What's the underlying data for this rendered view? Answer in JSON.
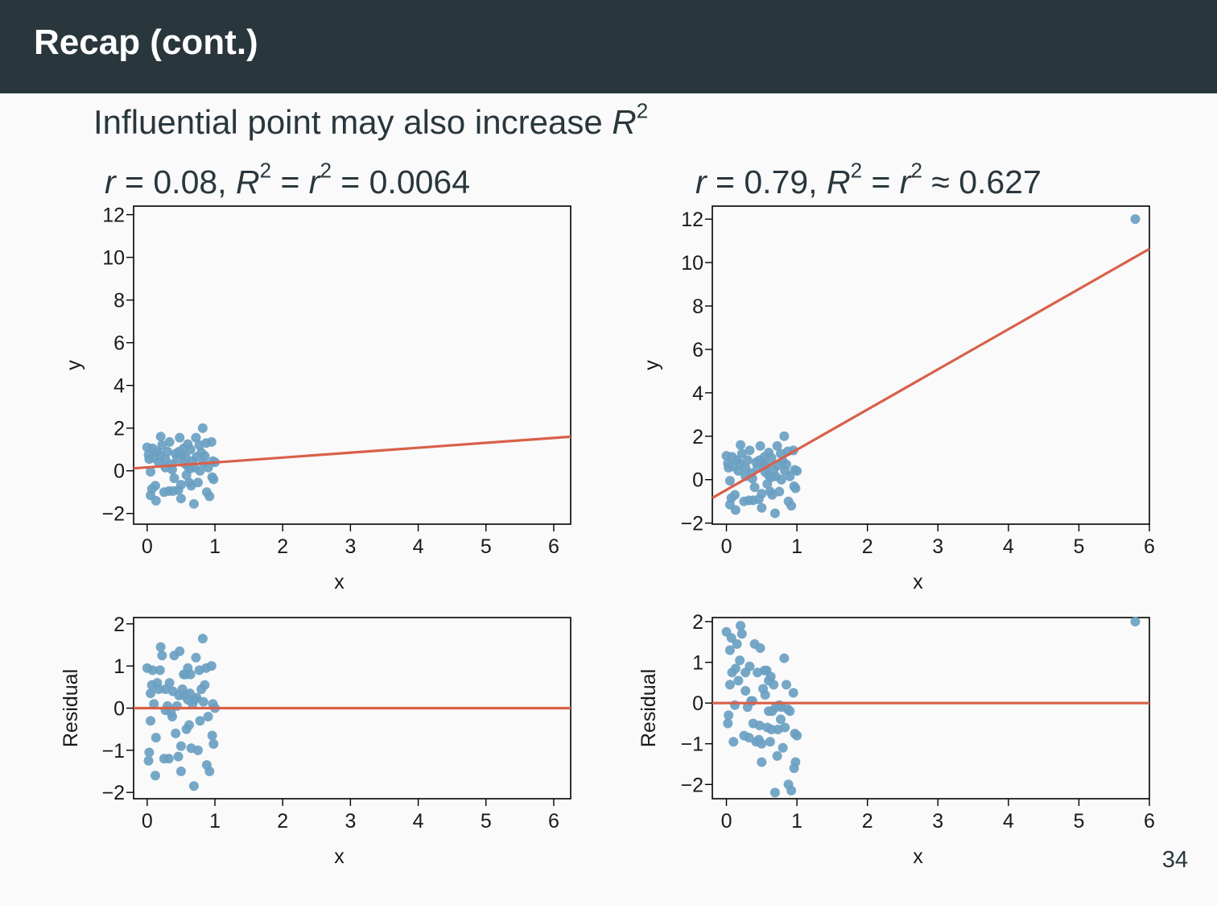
{
  "slide": {
    "title": "Recap (cont.)",
    "subtitle_text": "Influential point may also increase ",
    "subtitle_var": "R",
    "subtitle_sup": "2",
    "page_number": "34"
  },
  "headings": {
    "left": {
      "r": "r",
      "eq1": " = 0.08, ",
      "R": "R",
      "sup1": "2",
      "eq2": " = ",
      "r2": "r",
      "sup2": "2",
      "eq3": " = 0.0064"
    },
    "right": {
      "r": "r",
      "eq1": " = 0.79, ",
      "R": "R",
      "sup1": "2",
      "eq2": " = ",
      "r2": "r",
      "sup2": "2",
      "eq3": " ≈ 0.627"
    }
  },
  "colors": {
    "point": "#6a9fc2",
    "line": "#d9604a",
    "axis": "#000000",
    "text": "#29373d"
  },
  "chart_data": [
    {
      "id": "scatter-left",
      "type": "scatter",
      "xlabel": "x",
      "ylabel": "y",
      "xlim": [
        -0.2,
        6.25
      ],
      "ylim": [
        -2.5,
        12.4
      ],
      "xticks": [
        0,
        1,
        2,
        3,
        4,
        5,
        6
      ],
      "yticks": [
        -2,
        0,
        2,
        4,
        6,
        8,
        10,
        12
      ],
      "fit_line": {
        "intercept": 0.16,
        "slope": 0.23
      },
      "points": [
        [
          0.0,
          1.1
        ],
        [
          0.02,
          0.75
        ],
        [
          0.03,
          0.55
        ],
        [
          0.05,
          -0.05
        ],
        [
          0.05,
          -1.15
        ],
        [
          0.07,
          -0.85
        ],
        [
          0.08,
          1.05
        ],
        [
          0.1,
          0.6
        ],
        [
          0.12,
          -0.7
        ],
        [
          0.13,
          -1.4
        ],
        [
          0.15,
          0.9
        ],
        [
          0.17,
          0.4
        ],
        [
          0.19,
          0.75
        ],
        [
          0.2,
          1.6
        ],
        [
          0.22,
          1.2
        ],
        [
          0.25,
          -1.0
        ],
        [
          0.27,
          0.55
        ],
        [
          0.3,
          0.9
        ],
        [
          0.32,
          -0.95
        ],
        [
          0.33,
          1.35
        ],
        [
          0.35,
          0.3
        ],
        [
          0.37,
          0.05
        ],
        [
          0.38,
          -0.95
        ],
        [
          0.4,
          -0.35
        ],
        [
          0.42,
          0.8
        ],
        [
          0.44,
          0.55
        ],
        [
          0.46,
          -0.9
        ],
        [
          0.48,
          1.55
        ],
        [
          0.5,
          -0.65
        ],
        [
          0.5,
          -1.3
        ],
        [
          0.52,
          0.75
        ],
        [
          0.54,
          1.05
        ],
        [
          0.55,
          0.35
        ],
        [
          0.57,
          0.65
        ],
        [
          0.58,
          -0.2
        ],
        [
          0.6,
          1.25
        ],
        [
          0.6,
          0.2
        ],
        [
          0.62,
          -0.55
        ],
        [
          0.64,
          1.0
        ],
        [
          0.65,
          -0.7
        ],
        [
          0.67,
          0.45
        ],
        [
          0.69,
          -1.55
        ],
        [
          0.7,
          0.15
        ],
        [
          0.72,
          1.55
        ],
        [
          0.73,
          0.65
        ],
        [
          0.75,
          -0.55
        ],
        [
          0.77,
          1.2
        ],
        [
          0.78,
          0.0
        ],
        [
          0.8,
          0.85
        ],
        [
          0.82,
          2.0
        ],
        [
          0.83,
          0.4
        ],
        [
          0.85,
          0.7
        ],
        [
          0.87,
          1.3
        ],
        [
          0.88,
          -1.0
        ],
        [
          0.9,
          0.15
        ],
        [
          0.92,
          -1.2
        ],
        [
          0.95,
          1.35
        ],
        [
          0.96,
          -0.3
        ],
        [
          0.97,
          0.45
        ],
        [
          0.98,
          -0.4
        ],
        [
          1.0,
          0.4
        ],
        [
          0.27,
          0.15
        ],
        [
          0.47,
          0.9
        ],
        [
          0.63,
          0.1
        ]
      ]
    },
    {
      "id": "scatter-right",
      "type": "scatter",
      "xlabel": "x",
      "ylabel": "y",
      "xlim": [
        -0.2,
        6.0
      ],
      "ylim": [
        -2.05,
        12.6
      ],
      "xticks": [
        0,
        1,
        2,
        3,
        4,
        5,
        6
      ],
      "yticks": [
        -2,
        0,
        2,
        4,
        6,
        8,
        10,
        12
      ],
      "fit_line": {
        "intercept": -0.47,
        "slope": 1.85
      },
      "points": [
        [
          0.0,
          1.1
        ],
        [
          0.02,
          0.75
        ],
        [
          0.03,
          0.55
        ],
        [
          0.05,
          -0.05
        ],
        [
          0.05,
          -1.15
        ],
        [
          0.07,
          -0.85
        ],
        [
          0.08,
          1.05
        ],
        [
          0.1,
          0.6
        ],
        [
          0.12,
          -0.7
        ],
        [
          0.13,
          -1.4
        ],
        [
          0.15,
          0.9
        ],
        [
          0.17,
          0.4
        ],
        [
          0.19,
          0.75
        ],
        [
          0.2,
          1.6
        ],
        [
          0.22,
          1.2
        ],
        [
          0.25,
          -1.0
        ],
        [
          0.27,
          0.55
        ],
        [
          0.3,
          0.9
        ],
        [
          0.32,
          -0.95
        ],
        [
          0.33,
          1.35
        ],
        [
          0.35,
          0.3
        ],
        [
          0.37,
          0.05
        ],
        [
          0.38,
          -0.95
        ],
        [
          0.4,
          -0.35
        ],
        [
          0.42,
          0.8
        ],
        [
          0.44,
          0.55
        ],
        [
          0.46,
          -0.9
        ],
        [
          0.48,
          1.55
        ],
        [
          0.5,
          -0.65
        ],
        [
          0.5,
          -1.3
        ],
        [
          0.52,
          0.75
        ],
        [
          0.54,
          1.05
        ],
        [
          0.55,
          0.35
        ],
        [
          0.57,
          0.65
        ],
        [
          0.58,
          -0.2
        ],
        [
          0.6,
          1.25
        ],
        [
          0.6,
          0.2
        ],
        [
          0.62,
          -0.55
        ],
        [
          0.64,
          1.0
        ],
        [
          0.65,
          -0.7
        ],
        [
          0.67,
          0.45
        ],
        [
          0.69,
          -1.55
        ],
        [
          0.7,
          0.15
        ],
        [
          0.72,
          1.55
        ],
        [
          0.73,
          0.65
        ],
        [
          0.75,
          -0.55
        ],
        [
          0.77,
          1.2
        ],
        [
          0.78,
          0.0
        ],
        [
          0.8,
          0.85
        ],
        [
          0.82,
          2.0
        ],
        [
          0.83,
          0.4
        ],
        [
          0.85,
          0.7
        ],
        [
          0.87,
          1.3
        ],
        [
          0.88,
          -1.0
        ],
        [
          0.9,
          0.15
        ],
        [
          0.92,
          -1.2
        ],
        [
          0.95,
          1.35
        ],
        [
          0.96,
          -0.3
        ],
        [
          0.97,
          0.45
        ],
        [
          0.98,
          -0.4
        ],
        [
          1.0,
          0.4
        ],
        [
          0.27,
          0.15
        ],
        [
          0.47,
          0.9
        ],
        [
          0.63,
          0.1
        ],
        [
          5.8,
          12.0
        ]
      ]
    },
    {
      "id": "residual-left",
      "type": "scatter",
      "xlabel": "x",
      "ylabel": "Residual",
      "xlim": [
        -0.2,
        6.25
      ],
      "ylim": [
        -2.15,
        2.15
      ],
      "xticks": [
        0,
        1,
        2,
        3,
        4,
        5,
        6
      ],
      "yticks": [
        -2,
        -1,
        0,
        1,
        2
      ],
      "fit_line": {
        "intercept": 0,
        "slope": 0
      },
      "points": [
        [
          0.0,
          0.95
        ],
        [
          0.02,
          -1.25
        ],
        [
          0.03,
          -1.05
        ],
        [
          0.05,
          0.35
        ],
        [
          0.05,
          -0.3
        ],
        [
          0.07,
          0.55
        ],
        [
          0.08,
          0.9
        ],
        [
          0.1,
          0.1
        ],
        [
          0.12,
          -1.6
        ],
        [
          0.13,
          -0.7
        ],
        [
          0.15,
          0.6
        ],
        [
          0.17,
          0.45
        ],
        [
          0.19,
          0.9
        ],
        [
          0.2,
          1.45
        ],
        [
          0.22,
          1.25
        ],
        [
          0.25,
          -1.2
        ],
        [
          0.27,
          0.45
        ],
        [
          0.3,
          0.05
        ],
        [
          0.32,
          -1.2
        ],
        [
          0.33,
          0.6
        ],
        [
          0.35,
          -0.1
        ],
        [
          0.37,
          -0.2
        ],
        [
          0.38,
          0.4
        ],
        [
          0.4,
          1.25
        ],
        [
          0.42,
          -0.6
        ],
        [
          0.44,
          0.05
        ],
        [
          0.46,
          -1.15
        ],
        [
          0.48,
          1.35
        ],
        [
          0.5,
          -0.9
        ],
        [
          0.5,
          -1.5
        ],
        [
          0.52,
          0.45
        ],
        [
          0.54,
          0.8
        ],
        [
          0.55,
          0.3
        ],
        [
          0.57,
          0.8
        ],
        [
          0.58,
          -0.5
        ],
        [
          0.6,
          0.95
        ],
        [
          0.6,
          0.2
        ],
        [
          0.62,
          -0.4
        ],
        [
          0.64,
          0.8
        ],
        [
          0.65,
          -0.95
        ],
        [
          0.67,
          0.1
        ],
        [
          0.69,
          -1.85
        ],
        [
          0.7,
          0.2
        ],
        [
          0.72,
          1.2
        ],
        [
          0.73,
          0.25
        ],
        [
          0.75,
          -1.0
        ],
        [
          0.77,
          0.9
        ],
        [
          0.78,
          -0.3
        ],
        [
          0.8,
          0.45
        ],
        [
          0.82,
          1.65
        ],
        [
          0.83,
          0.15
        ],
        [
          0.85,
          0.55
        ],
        [
          0.87,
          0.95
        ],
        [
          0.88,
          -1.35
        ],
        [
          0.9,
          -0.2
        ],
        [
          0.92,
          -1.5
        ],
        [
          0.95,
          1.0
        ],
        [
          0.96,
          -0.65
        ],
        [
          0.97,
          0.1
        ],
        [
          0.98,
          -0.85
        ],
        [
          1.0,
          0.0
        ],
        [
          0.27,
          -0.05
        ],
        [
          0.47,
          0.3
        ],
        [
          0.63,
          0.35
        ]
      ]
    },
    {
      "id": "residual-right",
      "type": "scatter",
      "xlabel": "x",
      "ylabel": "Residual",
      "xlim": [
        -0.2,
        6.0
      ],
      "ylim": [
        -2.35,
        2.1
      ],
      "xticks": [
        0,
        1,
        2,
        3,
        4,
        5,
        6
      ],
      "yticks": [
        -2,
        -1,
        0,
        1,
        2
      ],
      "fit_line": {
        "intercept": 0,
        "slope": 0
      },
      "points": [
        [
          0.0,
          1.75
        ],
        [
          0.02,
          -0.5
        ],
        [
          0.03,
          -0.3
        ],
        [
          0.05,
          1.3
        ],
        [
          0.05,
          0.45
        ],
        [
          0.07,
          1.6
        ],
        [
          0.08,
          0.75
        ],
        [
          0.1,
          -0.95
        ],
        [
          0.12,
          -0.05
        ],
        [
          0.13,
          0.85
        ],
        [
          0.15,
          1.45
        ],
        [
          0.17,
          0.55
        ],
        [
          0.19,
          1.05
        ],
        [
          0.2,
          1.9
        ],
        [
          0.22,
          1.7
        ],
        [
          0.25,
          -0.8
        ],
        [
          0.27,
          0.75
        ],
        [
          0.3,
          -0.1
        ],
        [
          0.32,
          -0.85
        ],
        [
          0.33,
          0.9
        ],
        [
          0.35,
          0.05
        ],
        [
          0.37,
          0.05
        ],
        [
          0.38,
          -0.5
        ],
        [
          0.4,
          1.45
        ],
        [
          0.42,
          -0.95
        ],
        [
          0.44,
          0.75
        ],
        [
          0.46,
          -0.9
        ],
        [
          0.48,
          1.35
        ],
        [
          0.5,
          -1.45
        ],
        [
          0.5,
          -1.0
        ],
        [
          0.52,
          0.35
        ],
        [
          0.54,
          0.8
        ],
        [
          0.55,
          0.2
        ],
        [
          0.57,
          0.8
        ],
        [
          0.58,
          -0.6
        ],
        [
          0.6,
          0.55
        ],
        [
          0.6,
          -0.2
        ],
        [
          0.62,
          -0.95
        ],
        [
          0.64,
          -0.65
        ],
        [
          0.65,
          -0.2
        ],
        [
          0.67,
          0.45
        ],
        [
          0.69,
          -2.2
        ],
        [
          0.7,
          -0.1
        ],
        [
          0.72,
          -1.3
        ],
        [
          0.73,
          -0.65
        ],
        [
          0.75,
          -0.05
        ],
        [
          0.77,
          -0.4
        ],
        [
          0.78,
          -0.1
        ],
        [
          0.8,
          -1.1
        ],
        [
          0.82,
          1.1
        ],
        [
          0.83,
          -0.6
        ],
        [
          0.85,
          0.45
        ],
        [
          0.87,
          -0.15
        ],
        [
          0.88,
          -2.0
        ],
        [
          0.9,
          -0.2
        ],
        [
          0.92,
          -2.15
        ],
        [
          0.95,
          0.25
        ],
        [
          0.96,
          -1.6
        ],
        [
          0.97,
          -0.75
        ],
        [
          0.98,
          -1.45
        ],
        [
          1.0,
          -0.8
        ],
        [
          0.27,
          0.3
        ],
        [
          0.47,
          -0.55
        ],
        [
          0.63,
          0.65
        ],
        [
          5.8,
          2.0
        ]
      ]
    }
  ]
}
